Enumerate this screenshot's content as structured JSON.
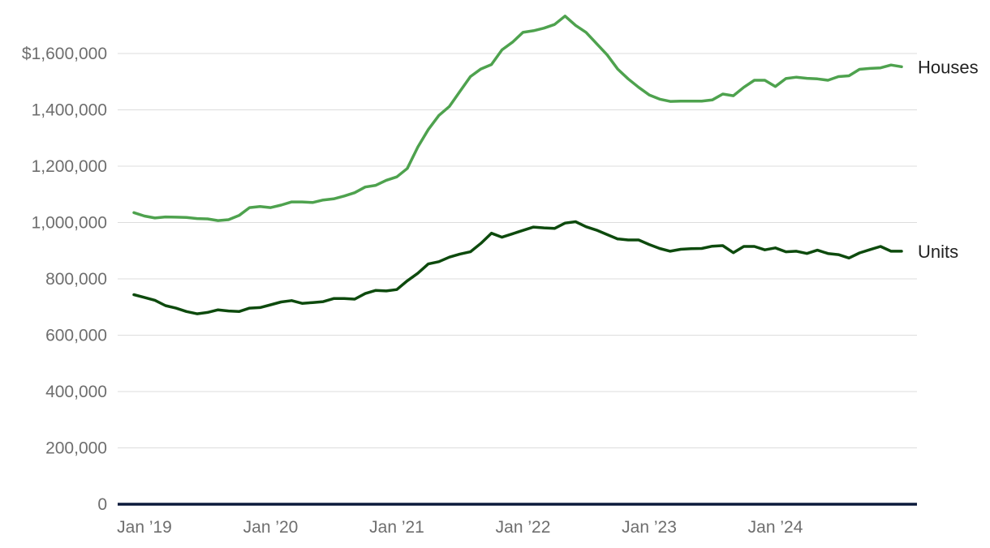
{
  "colors": {
    "houses": "#4ea24e",
    "units": "#0d4a0d",
    "grid": "#dddddd",
    "baseline": "#0b1a3b",
    "tick_text": "#6e6e6e",
    "label_text": "#222222"
  },
  "chart_data": {
    "type": "line",
    "title": "",
    "xlabel": "",
    "ylabel": "",
    "ylim": [
      0,
      1750000
    ],
    "grid": true,
    "legend": "direct labels at right end of each line",
    "y_ticks": [
      {
        "value": 0,
        "label": "0"
      },
      {
        "value": 200000,
        "label": "200,000"
      },
      {
        "value": 400000,
        "label": "400,000"
      },
      {
        "value": 600000,
        "label": "600,000"
      },
      {
        "value": 800000,
        "label": "800,000"
      },
      {
        "value": 1000000,
        "label": "1,000,000"
      },
      {
        "value": 1200000,
        "label": "1,200,000"
      },
      {
        "value": 1400000,
        "label": "1,400,000"
      },
      {
        "value": 1600000,
        "label": "$1,600,000"
      }
    ],
    "x_ticks": [
      {
        "index": 0,
        "label": "Jan ’19"
      },
      {
        "index": 12,
        "label": "Jan ’20"
      },
      {
        "index": 24,
        "label": "Jan ’21"
      },
      {
        "index": 36,
        "label": "Jan ’22"
      },
      {
        "index": 48,
        "label": "Jan ’23"
      },
      {
        "index": 60,
        "label": "Jan ’24"
      }
    ],
    "x": [
      "2019-01",
      "2019-02",
      "2019-03",
      "2019-04",
      "2019-05",
      "2019-06",
      "2019-07",
      "2019-08",
      "2019-09",
      "2019-10",
      "2019-11",
      "2019-12",
      "2020-01",
      "2020-02",
      "2020-03",
      "2020-04",
      "2020-05",
      "2020-06",
      "2020-07",
      "2020-08",
      "2020-09",
      "2020-10",
      "2020-11",
      "2020-12",
      "2021-01",
      "2021-02",
      "2021-03",
      "2021-04",
      "2021-05",
      "2021-06",
      "2021-07",
      "2021-08",
      "2021-09",
      "2021-10",
      "2021-11",
      "2021-12",
      "2022-01",
      "2022-02",
      "2022-03",
      "2022-04",
      "2022-05",
      "2022-06",
      "2022-07",
      "2022-08",
      "2022-09",
      "2022-10",
      "2022-11",
      "2022-12",
      "2023-01",
      "2023-02",
      "2023-03",
      "2023-04",
      "2023-05",
      "2023-06",
      "2023-07",
      "2023-08",
      "2023-09",
      "2023-10",
      "2023-11",
      "2023-12",
      "2024-01",
      "2024-02",
      "2024-03",
      "2024-04",
      "2024-05",
      "2024-06",
      "2024-07",
      "2024-08",
      "2024-09",
      "2024-10",
      "2024-11",
      "2024-12",
      "2025-01",
      "2025-02"
    ],
    "series": [
      {
        "name": "Houses",
        "color_key": "houses",
        "values": [
          1035000,
          1023000,
          1016000,
          1020000,
          1019000,
          1018000,
          1014000,
          1013000,
          1007000,
          1010000,
          1025000,
          1053000,
          1057000,
          1053000,
          1062000,
          1073000,
          1073000,
          1071000,
          1080000,
          1084000,
          1094000,
          1106000,
          1126000,
          1132000,
          1150000,
          1162000,
          1192000,
          1268000,
          1330000,
          1380000,
          1412000,
          1465000,
          1518000,
          1545000,
          1561000,
          1613000,
          1640000,
          1675000,
          1681000,
          1690000,
          1703000,
          1733000,
          1700000,
          1675000,
          1635000,
          1595000,
          1545000,
          1510000,
          1480000,
          1453000,
          1438000,
          1430000,
          1431000,
          1431000,
          1431000,
          1435000,
          1456000,
          1450000,
          1480000,
          1505000,
          1505000,
          1483000,
          1511000,
          1516000,
          1512000,
          1510000,
          1505000,
          1518000,
          1521000,
          1544000,
          1547000,
          1549000,
          1559000,
          1553000
        ]
      },
      {
        "name": "Units",
        "color_key": "units",
        "values": [
          744000,
          734000,
          724000,
          705000,
          696000,
          684000,
          676000,
          681000,
          690000,
          686000,
          684000,
          696000,
          698000,
          708000,
          718000,
          723000,
          713000,
          716000,
          719000,
          730000,
          730000,
          728000,
          748000,
          759000,
          757000,
          762000,
          793000,
          820000,
          853000,
          861000,
          877000,
          888000,
          896000,
          926000,
          962000,
          948000,
          960000,
          972000,
          984000,
          981000,
          979000,
          998000,
          1003000,
          985000,
          973000,
          957000,
          942000,
          938000,
          938000,
          922000,
          908000,
          898000,
          905000,
          907000,
          908000,
          916000,
          918000,
          893000,
          915000,
          915000,
          903000,
          910000,
          896000,
          898000,
          890000,
          902000,
          890000,
          886000,
          874000,
          892000,
          904000,
          915000,
          898000,
          898000
        ]
      }
    ]
  }
}
